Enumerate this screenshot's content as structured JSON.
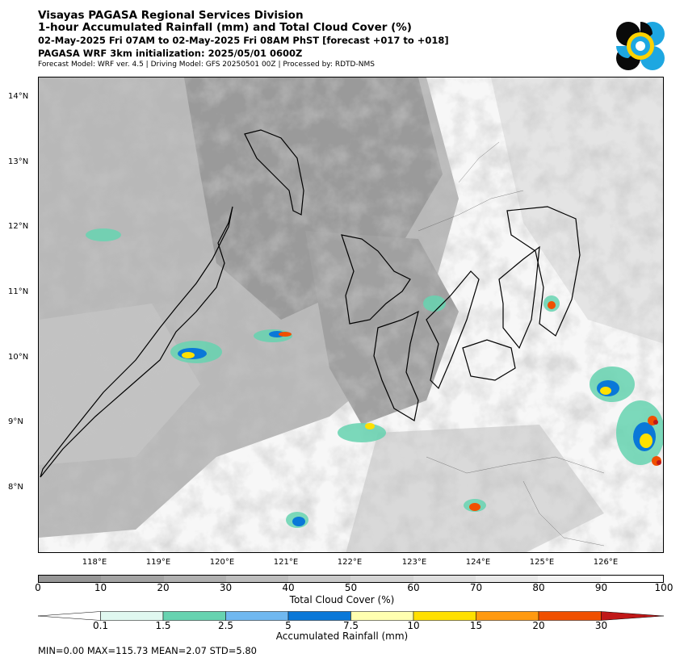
{
  "header": {
    "title": "Visayas PAGASA Regional Services Division",
    "subtitle": "1-hour Accumulated Rainfall (mm) and Total Cloud Cover (%)",
    "valid_time": "02-May-2025 Fri 07AM to 02-May-2025 Fri 08AM PhST [forecast +017 to +018]",
    "init": "PAGASA WRF 3km initialization: 2025/05/01 0600Z",
    "model_info": "Forecast Model: WRF ver. 4.5 | Driving Model: GFS 20250501 00Z | Processed by: RDTD-NMS"
  },
  "logo": {
    "colors": [
      "#0a0a0a",
      "#1ea7e1",
      "#ffd200"
    ],
    "icon": "pagasa-logo-icon"
  },
  "map": {
    "lat_labels": [
      "14°N",
      "13°N",
      "12°N",
      "11°N",
      "10°N",
      "9°N",
      "8°N"
    ],
    "lon_labels": [
      "118°E",
      "119°E",
      "120°E",
      "121°E",
      "122°E",
      "123°E",
      "124°E",
      "125°E",
      "126°E"
    ]
  },
  "cloud_legend": {
    "ticks": [
      "0",
      "10",
      "20",
      "30",
      "40",
      "50",
      "60",
      "70",
      "80",
      "90",
      "100"
    ],
    "label": "Total Cloud Cover (%)",
    "colors": [
      "#969696",
      "#a3a3a3",
      "#b0b0b0",
      "#bdbdbd",
      "#c9c9c9",
      "#d4d4d4",
      "#dedede",
      "#e8e8e8",
      "#f2f2f2",
      "#ffffff"
    ]
  },
  "rain_legend": {
    "ticks": [
      "0.1",
      "1.5",
      "2.5",
      "5",
      "7.5",
      "10",
      "15",
      "20",
      "30"
    ],
    "label": "Accumulated Rainfall (mm)",
    "colors": [
      "#ffffff",
      "#e0f8f0",
      "#66d3b0",
      "#70b8f0",
      "#0a78d8",
      "#ffffb0",
      "#ffe000",
      "#ff9a10",
      "#f05000",
      "#c01818"
    ]
  },
  "stats": "MIN=0.00   MAX=115.73   MEAN=2.07   STD=5.80"
}
